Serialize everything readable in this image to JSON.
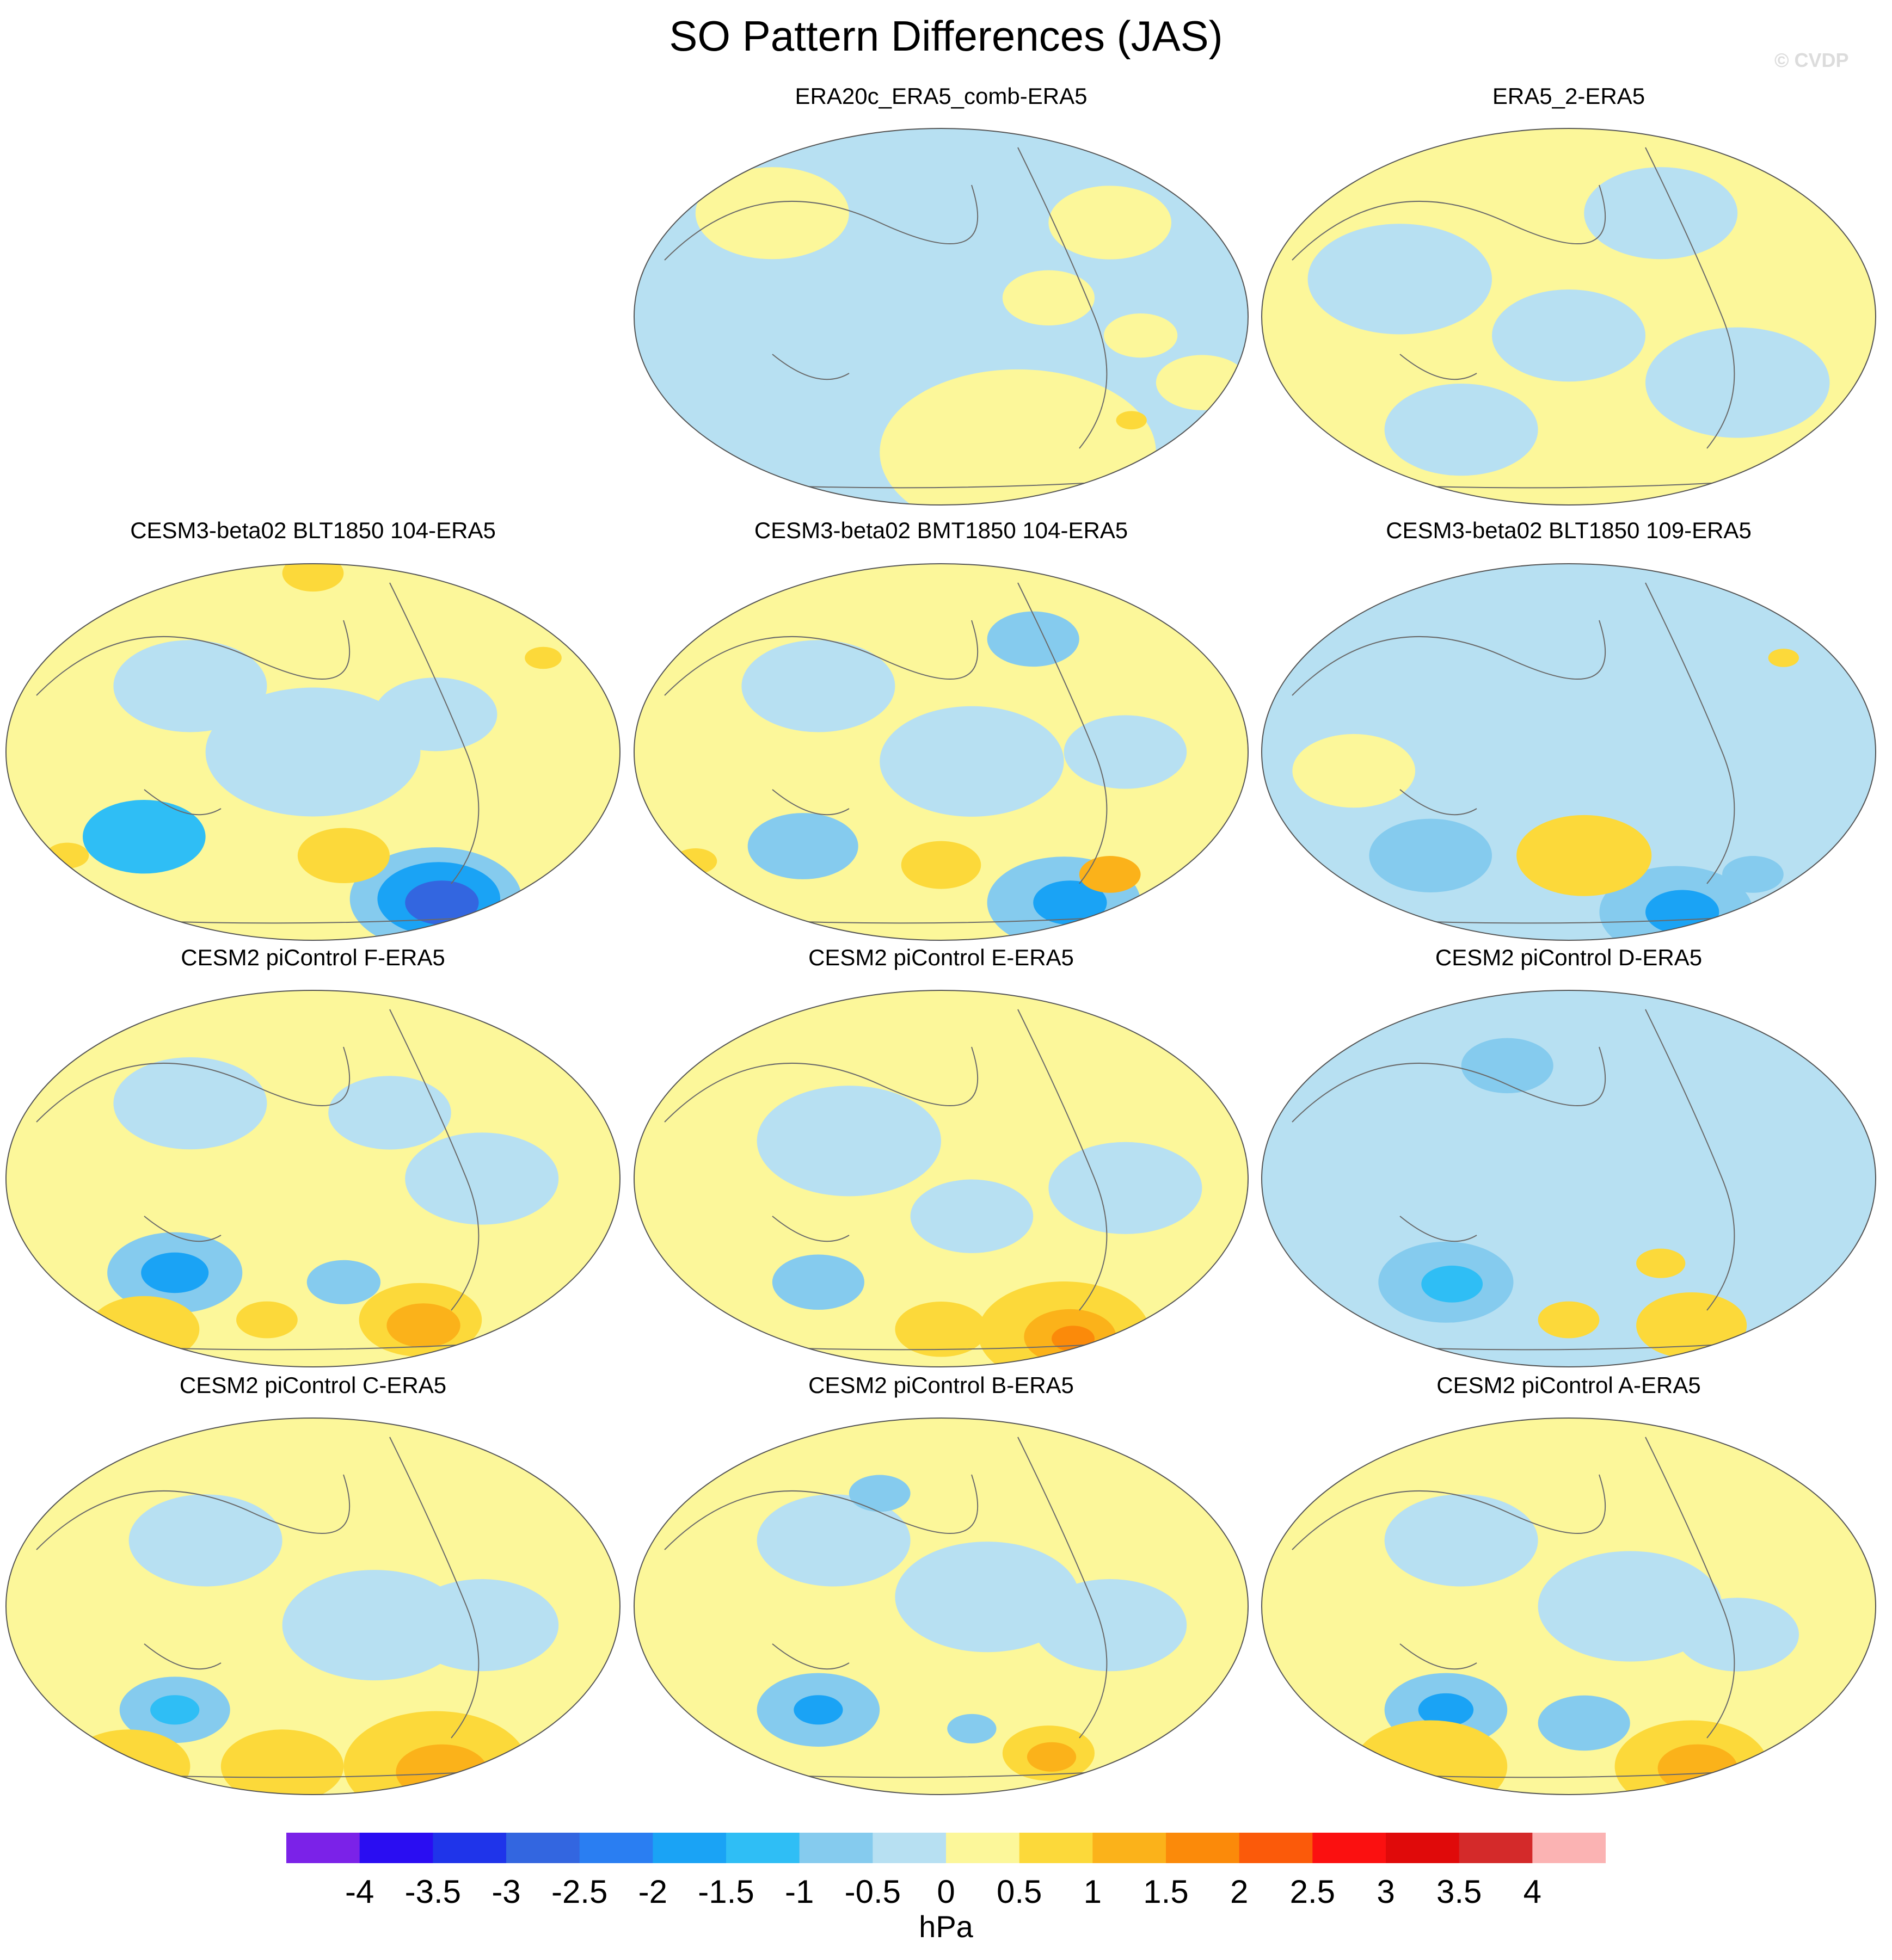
{
  "title": "SO Pattern Differences (JAS)",
  "watermark": "© CVDP",
  "colorbar": {
    "unit": "hPa",
    "levels": [
      "-4",
      "-3.5",
      "-3",
      "-2.5",
      "-2",
      "-1.5",
      "-1",
      "-0.5",
      "0",
      "0.5",
      "1",
      "1.5",
      "2",
      "2.5",
      "3",
      "3.5",
      "4"
    ],
    "colors": [
      "#7b22e8",
      "#2a0df2",
      "#1f34ea",
      "#3366e0",
      "#2a7ef2",
      "#1aa3f5",
      "#2fbef5",
      "#85cbee",
      "#b7e0f2",
      "#fcf79a",
      "#fcd93a",
      "#fbb21a",
      "#fb8a0a",
      "#fb5a0a",
      "#fb1010",
      "#e00a0a",
      "#d42a2a",
      "#fbb3b3"
    ]
  },
  "chart_data": [
    {
      "type": "heatmap",
      "title": "ERA20c_ERA5_comb-ERA5",
      "dominant": "0 to -0.5",
      "extremes": [
        -0.5,
        1.0
      ]
    },
    {
      "type": "heatmap",
      "title": "ERA5_2-ERA5",
      "dominant": "0 to 0.5",
      "extremes": [
        -0.5,
        0.5
      ]
    },
    {
      "type": "heatmap",
      "title": "CESM3-beta02 BLT1850 104-ERA5",
      "dominant": "0 to 0.5",
      "extremes": [
        -3.0,
        1.0
      ]
    },
    {
      "type": "heatmap",
      "title": "CESM3-beta02 BMT1850 104-ERA5",
      "dominant": "0 to 0.5",
      "extremes": [
        -2.0,
        1.5
      ]
    },
    {
      "type": "heatmap",
      "title": "CESM3-beta02 BLT1850 109-ERA5",
      "dominant": "0 to -0.5",
      "extremes": [
        -2.0,
        1.0
      ]
    },
    {
      "type": "heatmap",
      "title": "CESM2 piControl F-ERA5",
      "dominant": "0 to 0.5",
      "extremes": [
        -2.0,
        2.0
      ]
    },
    {
      "type": "heatmap",
      "title": "CESM2 piControl E-ERA5",
      "dominant": "0 to 0.5",
      "extremes": [
        -1.5,
        2.5
      ]
    },
    {
      "type": "heatmap",
      "title": "CESM2 piControl D-ERA5",
      "dominant": "0 to -0.5",
      "extremes": [
        -2.0,
        1.5
      ]
    },
    {
      "type": "heatmap",
      "title": "CESM2 piControl C-ERA5",
      "dominant": "0 to 0.5",
      "extremes": [
        -2.0,
        2.0
      ]
    },
    {
      "type": "heatmap",
      "title": "CESM2 piControl B-ERA5",
      "dominant": "0 to 0.5",
      "extremes": [
        -2.0,
        2.0
      ]
    },
    {
      "type": "heatmap",
      "title": "CESM2 piControl A-ERA5",
      "dominant": "0 to 0.5",
      "extremes": [
        -2.0,
        2.0
      ]
    }
  ]
}
